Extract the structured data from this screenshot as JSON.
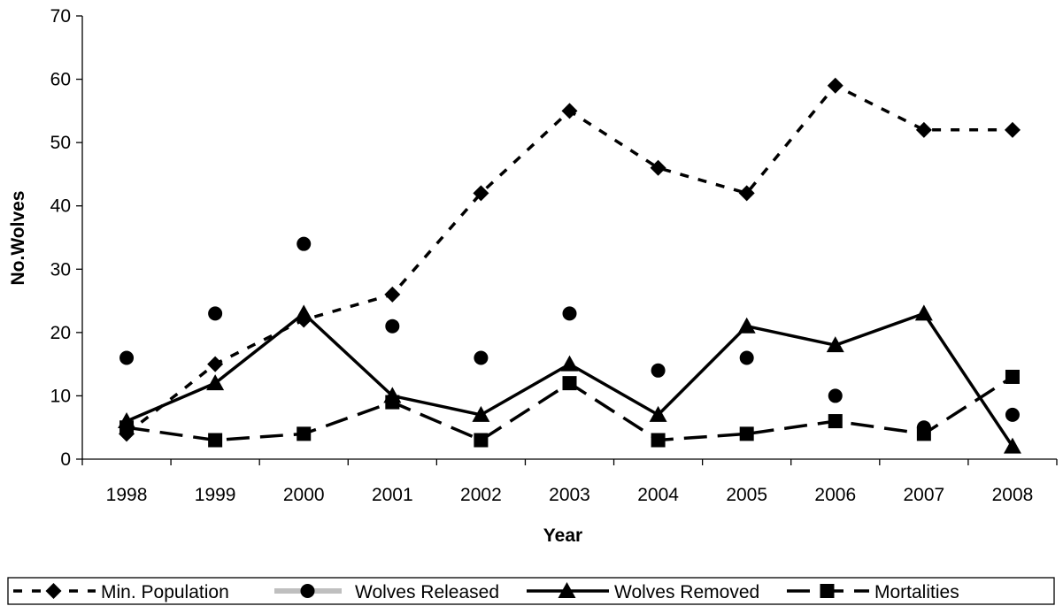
{
  "chart_data": {
    "type": "line",
    "xlabel": "Year",
    "ylabel": "No.Wolves",
    "ylim": [
      0,
      70
    ],
    "yticks": [
      0,
      10,
      20,
      30,
      40,
      50,
      60,
      70
    ],
    "categories": [
      "1998",
      "1999",
      "2000",
      "2001",
      "2002",
      "2003",
      "2004",
      "2005",
      "2006",
      "2007",
      "2008"
    ],
    "legend": "bottom",
    "grid": false,
    "series": [
      {
        "name": "Min. Population",
        "marker": "diamond",
        "line": "short-dash",
        "values": [
          4,
          15,
          22,
          26,
          42,
          55,
          46,
          42,
          59,
          52,
          52
        ]
      },
      {
        "name": "Wolves Released",
        "marker": "circle",
        "line": "none",
        "values": [
          16,
          23,
          34,
          21,
          16,
          23,
          14,
          16,
          10,
          5,
          7
        ]
      },
      {
        "name": "Wolves Removed",
        "marker": "triangle",
        "line": "solid",
        "values": [
          6,
          12,
          23,
          10,
          7,
          15,
          7,
          21,
          18,
          23,
          2
        ]
      },
      {
        "name": "Mortalities",
        "marker": "square",
        "line": "long-dash",
        "values": [
          5,
          3,
          4,
          9,
          3,
          12,
          3,
          4,
          6,
          4,
          13
        ]
      }
    ]
  }
}
